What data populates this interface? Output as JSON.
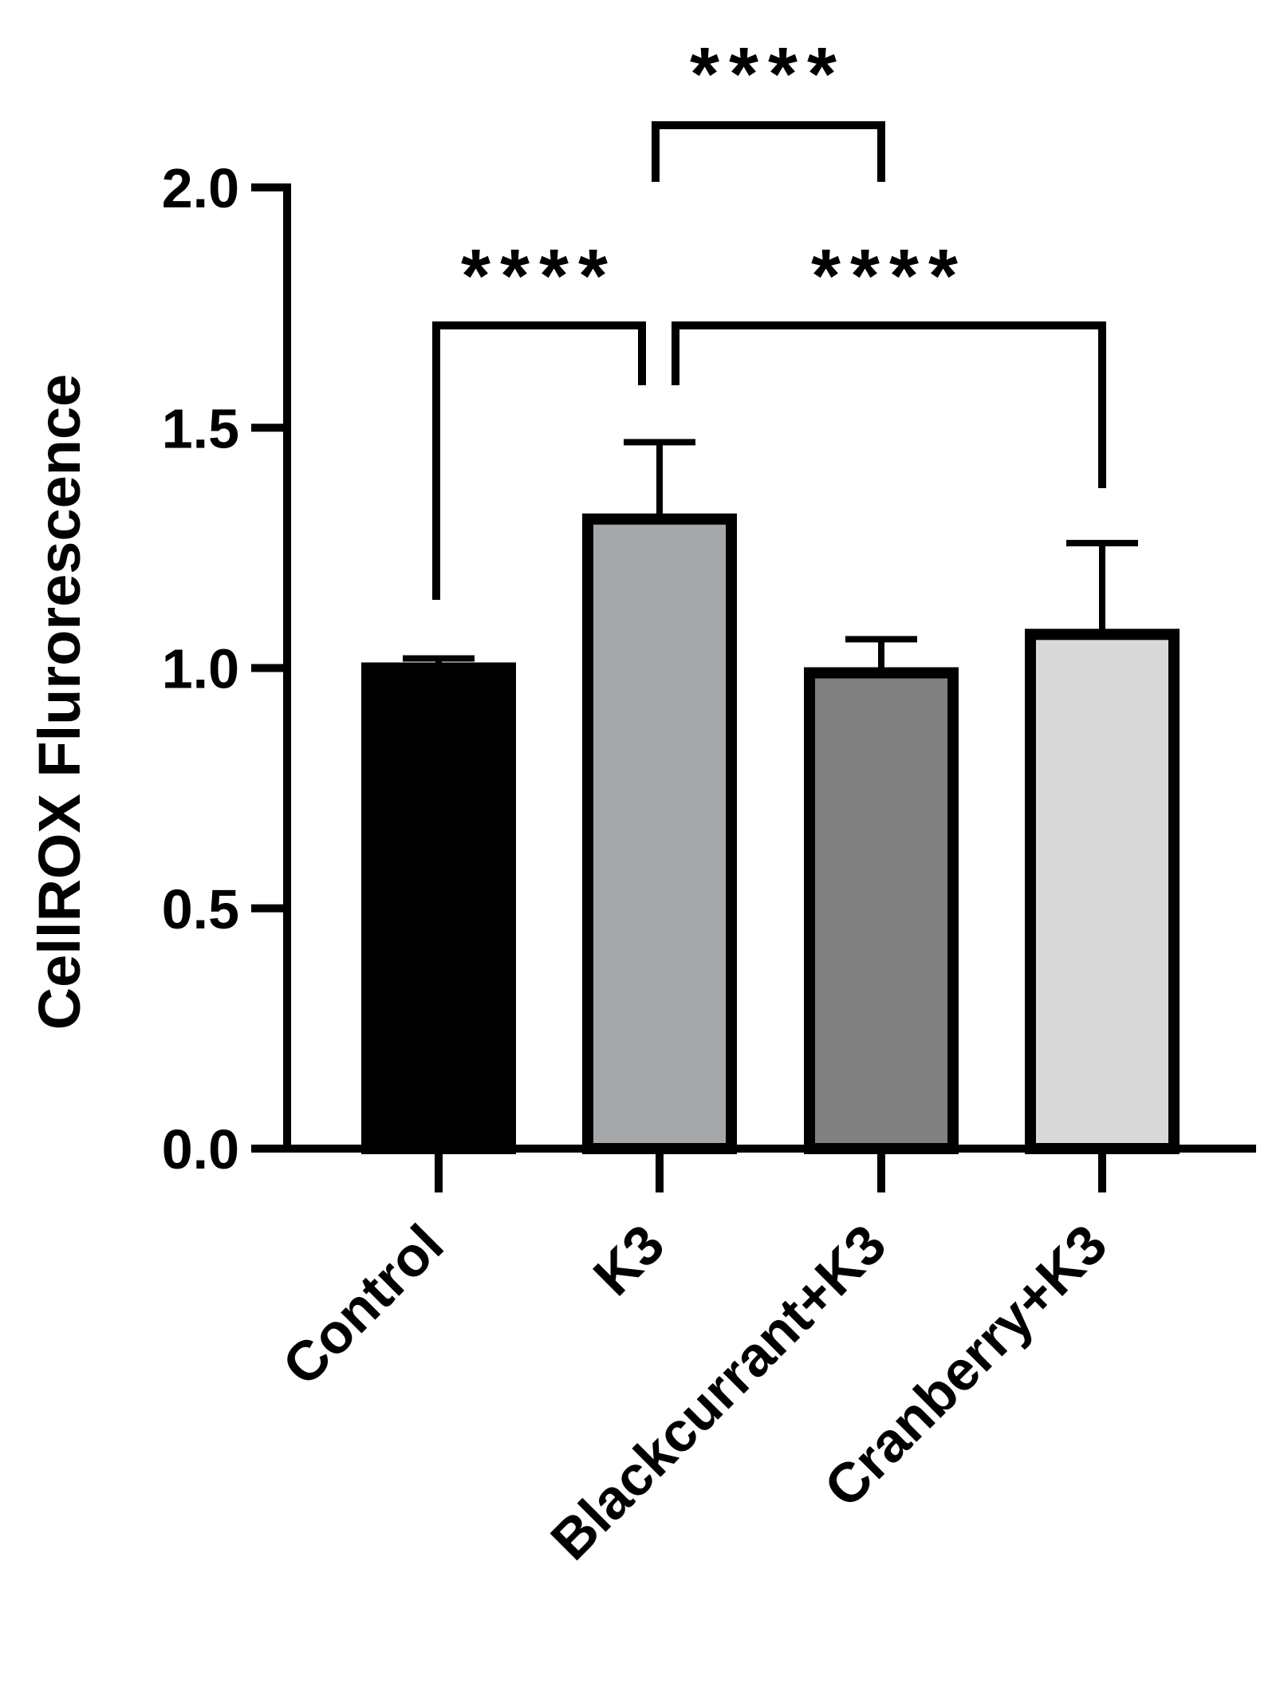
{
  "chart_data": {
    "type": "bar",
    "title": "",
    "xlabel": "",
    "ylabel": "CellROX Flurorescence",
    "ylim": [
      0,
      2.0
    ],
    "yticks": [
      0.0,
      0.5,
      1.0,
      1.5,
      2.0
    ],
    "ytick_labels": [
      "0.0",
      "0.5",
      "1.0",
      "1.5",
      "2.0"
    ],
    "categories": [
      "Control",
      "K3",
      "Blackcurrant+K3",
      "Cranberry+K3"
    ],
    "values": [
      1.0,
      1.31,
      0.99,
      1.07
    ],
    "errors": [
      0.02,
      0.16,
      0.07,
      0.19
    ],
    "bar_colors": [
      "#000000",
      "#a6a7aa",
      "#808080",
      "#d9d9d9"
    ],
    "grid": false,
    "legend": "none",
    "significance": [
      {
        "pair": [
          "Control",
          "K3"
        ],
        "label": "****"
      },
      {
        "pair": [
          "K3",
          "Cranberry+K3"
        ],
        "label": "****"
      },
      {
        "pair": [
          "K3",
          "Blackcurrant+K3"
        ],
        "label": "****"
      }
    ]
  }
}
